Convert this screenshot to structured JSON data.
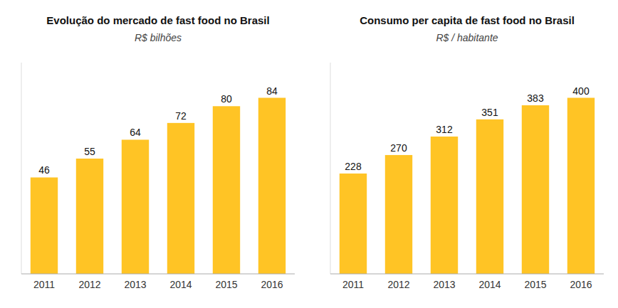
{
  "chart_data": [
    {
      "type": "bar",
      "title": "Evolução do mercado de fast food no Brasil",
      "subtitle": "R$ bilhões",
      "categories": [
        "2011",
        "2012",
        "2013",
        "2014",
        "2015",
        "2016"
      ],
      "values": [
        46,
        55,
        64,
        72,
        80,
        84
      ],
      "color": "#FFC425",
      "ylim": [
        0,
        100.8
      ],
      "yticks": [],
      "grid": false,
      "tick_labels": "x",
      "data_labels": true
    },
    {
      "type": "bar",
      "title": "Consumo per capita de fast food no Brasil",
      "subtitle": "R$ / habitante",
      "categories": [
        "2011",
        "2012",
        "2013",
        "2014",
        "2015",
        "2016"
      ],
      "values": [
        228,
        270,
        312,
        351,
        383,
        400
      ],
      "color": "#FFC425",
      "ylim": [
        0,
        480
      ],
      "yticks": [],
      "grid": false,
      "tick_labels": "x",
      "data_labels": true
    }
  ]
}
